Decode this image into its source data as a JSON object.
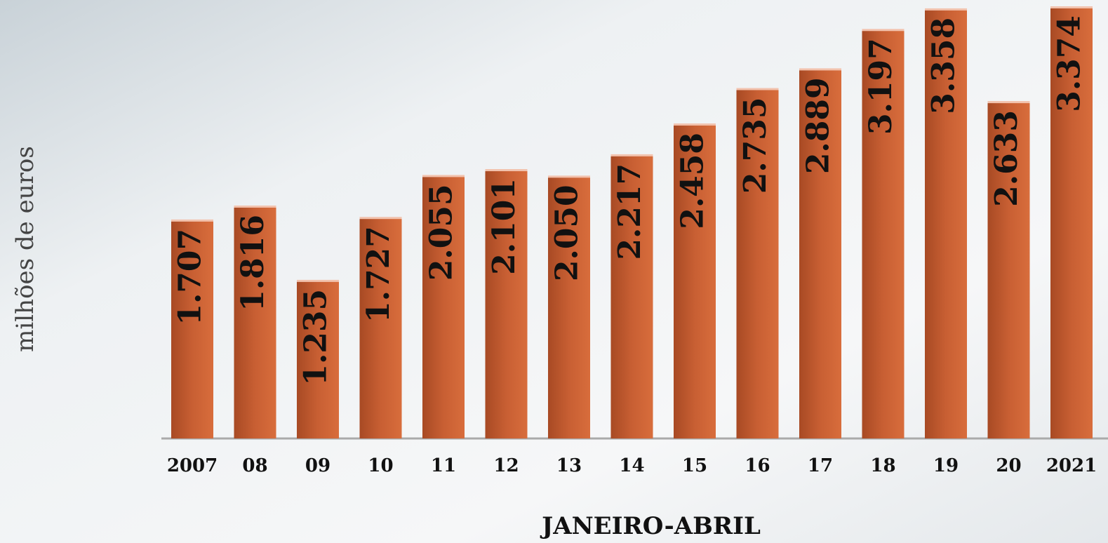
{
  "chart_data": {
    "type": "bar",
    "y_label": "milhões de euros",
    "x_label": "JANEIRO-ABRIL",
    "categories": [
      "2007",
      "08",
      "09",
      "10",
      "11",
      "12",
      "13",
      "14",
      "15",
      "16",
      "17",
      "18",
      "19",
      "20",
      "2021"
    ],
    "values": [
      1707,
      1816,
      1235,
      1727,
      2055,
      2101,
      2050,
      2217,
      2458,
      2735,
      2889,
      3197,
      3358,
      2633,
      3374
    ],
    "value_labels": [
      "1.707",
      "1.816",
      "1.235",
      "1.727",
      "2.055",
      "2.101",
      "2.050",
      "2.217",
      "2.458",
      "2.735",
      "2.889",
      "3.197",
      "3.358",
      "2.633",
      "3.374"
    ],
    "color": "#c85f33"
  }
}
